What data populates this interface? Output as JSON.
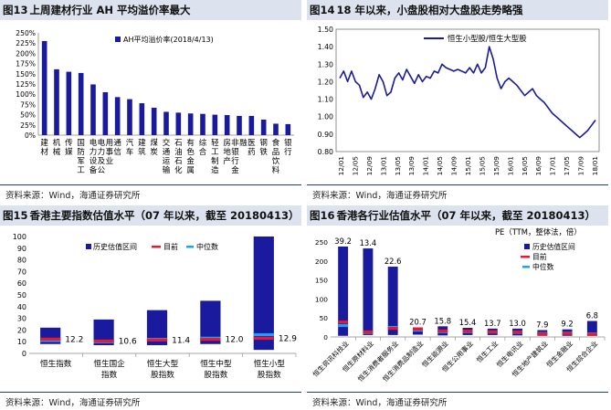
{
  "colors": {
    "bar": "#1a1a9e",
    "line": "#1a1a9e",
    "current": "#e8192c",
    "median": "#1e9fff",
    "title_bg": "#dde3ee",
    "rule": "#1f3a93"
  },
  "panels": [
    {
      "num": "图13",
      "title": "上周建材行业 AH 平均溢价率最大",
      "source": "资料来源：Wind，海通证券研究所"
    },
    {
      "num": "图14",
      "title": "18 年以来，小盘股相对大盘股走势略强",
      "source": "资料来源：Wind，海通证券研究所"
    },
    {
      "num": "图15",
      "title": "香港主要指数估值水平（07 年以来，截至 20180413）",
      "source": "资料来源：Wind，海通证券研究所"
    },
    {
      "num": "图16",
      "title": "香港各行业估值水平（07 年以来，截至 20180413）",
      "source": "资料来源：Wind，海通证券研究所"
    }
  ],
  "chart_data": [
    {
      "type": "bar",
      "legend": "AH平均溢价率(2018/4/13)",
      "ylim": [
        0,
        250
      ],
      "yticks": [
        "0%",
        "25%",
        "50%",
        "75%",
        "100%",
        "125%",
        "150%",
        "175%",
        "200%",
        "225%",
        "250%"
      ],
      "categories": [
        "建材",
        "机械",
        "传媒",
        "国防军工",
        "电力设备",
        "电力及公用事业",
        "通信",
        "汽车",
        "建筑",
        "煤炭",
        "交通运输",
        "石油石化",
        "有色金属",
        "综合",
        "轻工制造",
        "房地产",
        "非银行金融",
        "医药",
        "钢铁",
        "食品饮料",
        "银行"
      ],
      "values": [
        230,
        161,
        155,
        152,
        124,
        105,
        93,
        88,
        78,
        67,
        57,
        55,
        53,
        52,
        50,
        49,
        47,
        47,
        38,
        28,
        27
      ]
    },
    {
      "type": "line",
      "legend": "恒生小型股/恒生大型股",
      "ylim": [
        0.8,
        1.5
      ],
      "yticks": [
        "0.80",
        "0.90",
        "1.00",
        "1.10",
        "1.20",
        "1.30",
        "1.40",
        "1.50"
      ],
      "xticks": [
        "12/01",
        "12/05",
        "12/09",
        "13/01",
        "13/05",
        "13/09",
        "14/01",
        "14/05",
        "14/09",
        "15/01",
        "15/05",
        "15/09",
        "16/01",
        "16/05",
        "16/09",
        "17/01",
        "17/05",
        "17/09",
        "18/01"
      ],
      "points": [
        [
          0,
          1.22
        ],
        [
          1,
          1.26
        ],
        [
          2,
          1.2
        ],
        [
          3,
          1.26
        ],
        [
          4,
          1.2
        ],
        [
          5,
          1.18
        ],
        [
          6,
          1.11
        ],
        [
          7,
          1.14
        ],
        [
          8,
          1.1
        ],
        [
          9,
          1.16
        ],
        [
          10,
          1.24
        ],
        [
          11,
          1.2
        ],
        [
          12,
          1.12
        ],
        [
          13,
          1.14
        ],
        [
          14,
          1.22
        ],
        [
          15,
          1.25
        ],
        [
          16,
          1.21
        ],
        [
          17,
          1.27
        ],
        [
          18,
          1.23
        ],
        [
          19,
          1.19
        ],
        [
          20,
          1.24
        ],
        [
          21,
          1.2
        ],
        [
          22,
          1.23
        ],
        [
          23,
          1.22
        ],
        [
          24,
          1.26
        ],
        [
          25,
          1.25
        ],
        [
          26,
          1.3
        ],
        [
          27,
          1.28
        ],
        [
          28,
          1.27
        ],
        [
          29,
          1.26
        ],
        [
          30,
          1.27
        ],
        [
          31,
          1.26
        ],
        [
          32,
          1.25
        ],
        [
          33,
          1.28
        ],
        [
          34,
          1.25
        ],
        [
          35,
          1.3
        ],
        [
          36,
          1.25
        ],
        [
          37,
          1.28
        ],
        [
          38,
          1.4
        ],
        [
          39,
          1.33
        ],
        [
          40,
          1.22
        ],
        [
          41,
          1.16
        ],
        [
          42,
          1.2
        ],
        [
          43,
          1.22
        ],
        [
          44,
          1.2
        ],
        [
          45,
          1.18
        ],
        [
          46,
          1.15
        ],
        [
          47,
          1.12
        ],
        [
          48,
          1.14
        ],
        [
          49,
          1.16
        ],
        [
          50,
          1.12
        ],
        [
          51,
          1.1
        ],
        [
          52,
          1.08
        ],
        [
          53,
          1.05
        ],
        [
          54,
          1.02
        ],
        [
          55,
          1.0
        ],
        [
          56,
          0.98
        ],
        [
          57,
          0.96
        ],
        [
          58,
          0.94
        ],
        [
          59,
          0.92
        ],
        [
          60,
          0.9
        ],
        [
          61,
          0.88
        ],
        [
          62,
          0.9
        ],
        [
          63,
          0.92
        ],
        [
          64,
          0.95
        ],
        [
          65,
          0.98
        ]
      ]
    },
    {
      "type": "bar",
      "ylim": [
        0,
        100
      ],
      "yticks": [
        "0",
        "10",
        "20",
        "30",
        "40",
        "50",
        "60",
        "70",
        "80",
        "90",
        "100"
      ],
      "legend": [
        "历史估值区间",
        "目前",
        "中位数"
      ],
      "categories": [
        "恒生指数",
        "恒生国企指数",
        "恒生大型股指数",
        "恒生中型股指数",
        "恒生小型股指数"
      ],
      "category_lines": [
        [
          "恒生指数"
        ],
        [
          "恒生国企",
          "指数"
        ],
        [
          "恒生大型",
          "股指数"
        ],
        [
          "恒生中型",
          "股指数"
        ],
        [
          "恒生小型",
          "股指数"
        ]
      ],
      "range_low": [
        8,
        7,
        7,
        8,
        3
      ],
      "range_high": [
        22,
        29,
        37,
        45,
        100
      ],
      "current": [
        12.2,
        10.6,
        11.4,
        12.0,
        12.9
      ],
      "median": [
        11,
        10,
        12,
        13,
        16
      ],
      "labels": [
        "12.2",
        "10.6",
        "11.4",
        "12.0",
        "12.9"
      ]
    },
    {
      "type": "bar",
      "ylabel": "PE（TTM，整体法，倍）",
      "ylim": [
        0,
        250
      ],
      "yticks": [
        "0",
        "50",
        "100",
        "150",
        "200",
        "250"
      ],
      "legend": [
        "历史估值区间",
        "目前",
        "中位数"
      ],
      "categories": [
        "恒生资讯科技业",
        "恒生原材料业",
        "恒生消费者服务业",
        "恒生消费品制造业",
        "恒生能源业",
        "恒生公用事业",
        "恒生工业",
        "恒生电讯业",
        "恒生地产建筑业",
        "恒生金融业",
        "恒生综合企业"
      ],
      "range_low": [
        3,
        5,
        5,
        6,
        4,
        5,
        5,
        4,
        3,
        3,
        3
      ],
      "range_high": [
        238,
        233,
        185,
        25,
        28,
        24,
        22,
        22,
        18,
        20,
        42
      ],
      "current": [
        39.2,
        13.4,
        22.6,
        20.7,
        15.8,
        15.4,
        13.7,
        13.0,
        7.9,
        9.2,
        6.8
      ],
      "median": [
        30,
        12,
        25,
        18,
        14,
        14,
        13,
        12,
        9,
        10,
        8
      ],
      "labels": [
        "39.2",
        "13.4",
        "22.6",
        "20.7",
        "15.8",
        "15.4",
        "13.7",
        "13.0",
        "7.9",
        "9.2",
        "6.8"
      ]
    }
  ]
}
